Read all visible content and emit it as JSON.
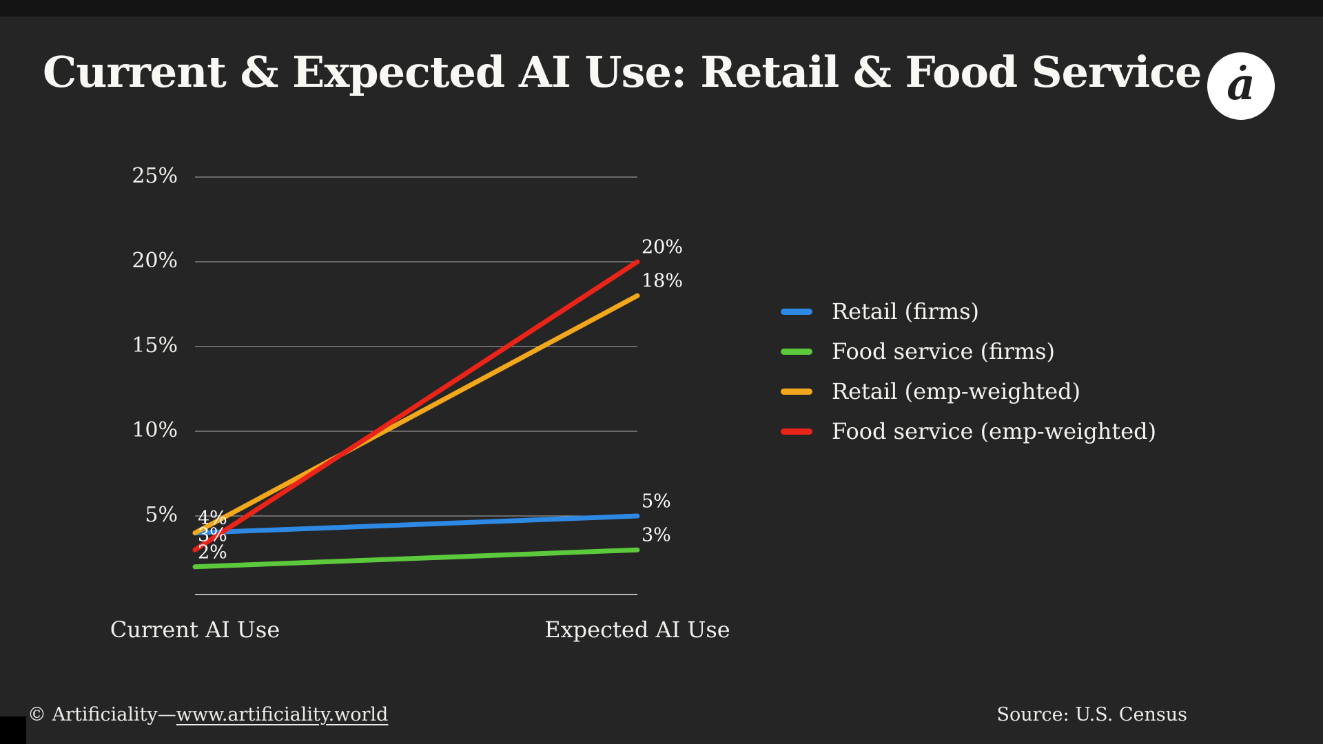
{
  "page": {
    "background": "#252525",
    "top_strip_color": "#141414",
    "corner_square_color": "#000000"
  },
  "header": {
    "title": "Current & Expected AI Use: Retail & Food Service",
    "logo_glyph": "ȧ"
  },
  "chart_data": {
    "type": "line",
    "variant": "slope",
    "title": "Current & Expected AI Use: Retail & Food Service",
    "categories": [
      "Current AI Use",
      "Expected AI Use"
    ],
    "series": [
      {
        "name": "Retail (firms)",
        "color": "#2E89E5",
        "values": [
          4,
          5
        ]
      },
      {
        "name": "Food service (firms)",
        "color": "#5BC93B",
        "values": [
          2,
          3
        ]
      },
      {
        "name": "Retail (emp-weighted)",
        "color": "#F3A71D",
        "values": [
          4,
          18
        ]
      },
      {
        "name": "Food service (emp-weighted)",
        "color": "#EA2418",
        "values": [
          3,
          20
        ]
      }
    ],
    "yticks": [
      5,
      10,
      15,
      20,
      25
    ],
    "ytick_labels": [
      "5%",
      "10%",
      "15%",
      "20%",
      "25%"
    ],
    "ylim": [
      0,
      27
    ],
    "grid": true,
    "legend_position": "right",
    "value_labels": {
      "left": [
        {
          "text": "4%",
          "value": 4
        },
        {
          "text": "3%",
          "value": 3
        },
        {
          "text": "2%",
          "value": 2
        }
      ],
      "right": [
        {
          "text": "20%",
          "value": 20
        },
        {
          "text": "18%",
          "value": 18
        },
        {
          "text": "5%",
          "value": 5
        },
        {
          "text": "3%",
          "value": 3
        }
      ]
    }
  },
  "footer": {
    "copyright_prefix": "© Artificiality—",
    "link_text": "www.artificiality.world",
    "source": "Source: U.S. Census"
  }
}
